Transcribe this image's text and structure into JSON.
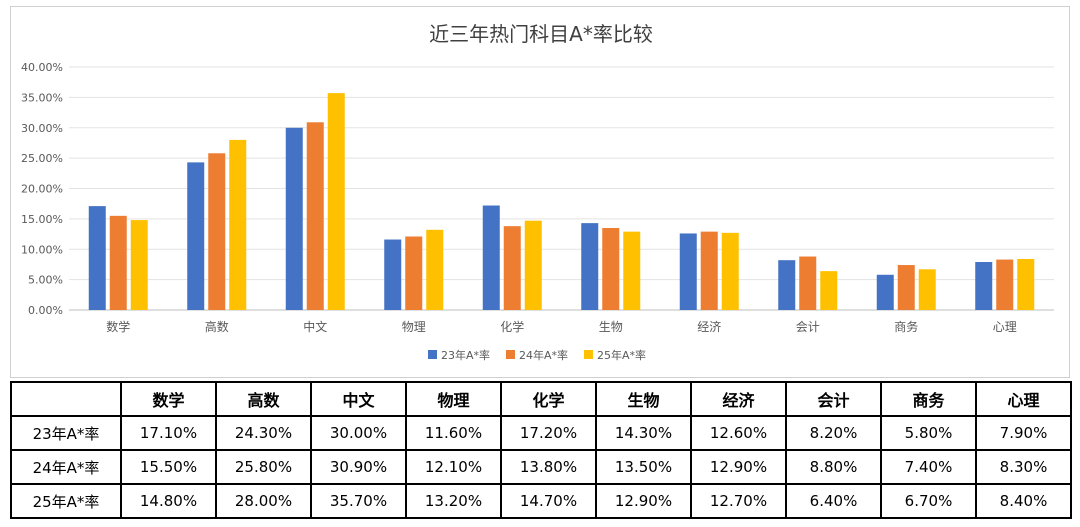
{
  "chart_data": {
    "type": "bar",
    "title": "近三年热门科目A*率比较",
    "categories": [
      "数学",
      "高数",
      "中文",
      "物理",
      "化学",
      "生物",
      "经济",
      "会计",
      "商务",
      "心理"
    ],
    "series": [
      {
        "name": "23年A*率",
        "color": "#4472C4",
        "values": [
          17.1,
          24.3,
          30.0,
          11.6,
          17.2,
          14.3,
          12.6,
          8.2,
          5.8,
          7.9
        ]
      },
      {
        "name": "24年A*率",
        "color": "#ED7D31",
        "values": [
          15.5,
          25.8,
          30.9,
          12.1,
          13.8,
          13.5,
          12.9,
          8.8,
          7.4,
          8.3
        ]
      },
      {
        "name": "25年A*率",
        "color": "#FFC000",
        "values": [
          14.8,
          28.0,
          35.7,
          13.2,
          14.7,
          12.9,
          12.7,
          6.4,
          6.7,
          8.4
        ]
      }
    ],
    "yticks": [
      "0.00%",
      "5.00%",
      "10.00%",
      "15.00%",
      "20.00%",
      "25.00%",
      "30.00%",
      "35.00%",
      "40.00%"
    ],
    "ylim": [
      0,
      40
    ],
    "grid": true,
    "legend": "bottom"
  },
  "table": {
    "header": [
      "",
      "数学",
      "高数",
      "中文",
      "物理",
      "化学",
      "生物",
      "经济",
      "会计",
      "商务",
      "心理"
    ],
    "rows": [
      [
        "23年A*率",
        "17.10%",
        "24.30%",
        "30.00%",
        "11.60%",
        "17.20%",
        "14.30%",
        "12.60%",
        "8.20%",
        "5.80%",
        "7.90%"
      ],
      [
        "24年A*率",
        "15.50%",
        "25.80%",
        "30.90%",
        "12.10%",
        "13.80%",
        "13.50%",
        "12.90%",
        "8.80%",
        "7.40%",
        "8.30%"
      ],
      [
        "25年A*率",
        "14.80%",
        "28.00%",
        "35.70%",
        "13.20%",
        "14.70%",
        "12.90%",
        "12.70%",
        "6.40%",
        "6.70%",
        "8.40%"
      ]
    ]
  }
}
